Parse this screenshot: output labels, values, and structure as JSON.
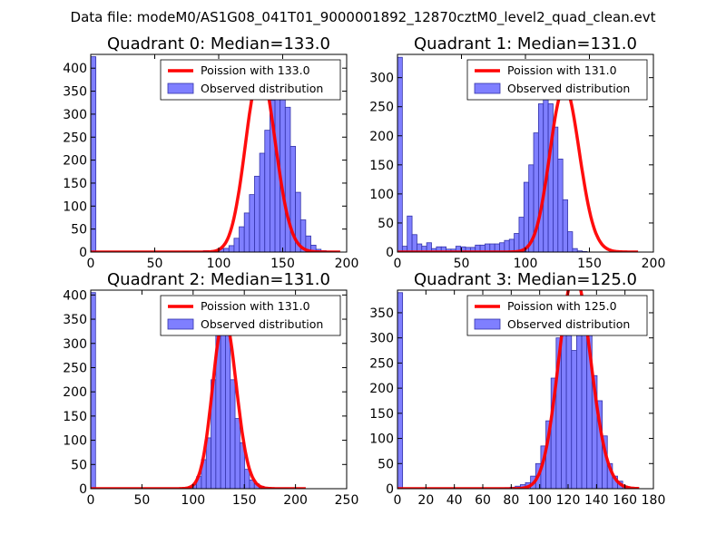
{
  "figure": {
    "suptitle": "Data file: modeM0/AS1G08_041T01_9000001892_12870cztM0_level2_quad_clean.evt",
    "colors": {
      "bar_fill": "#7f7fff",
      "bar_edge": "#3333aa",
      "fit_line": "#ff0000"
    }
  },
  "chart_data": [
    {
      "type": "bar",
      "title": "Quadrant 0: Median=133.0",
      "xlim": [
        0,
        200
      ],
      "ylim": [
        0,
        430
      ],
      "xticks": [
        0,
        50,
        100,
        150,
        200
      ],
      "yticks": [
        0,
        50,
        100,
        150,
        200,
        250,
        300,
        350,
        400
      ],
      "legend": {
        "line_label": "Poission with 133.0",
        "bar_label": "Observed distribution",
        "position": "upper-right"
      },
      "bins": {
        "start": 0,
        "width": 4.0
      },
      "counts": [
        425,
        0,
        0,
        0,
        0,
        0,
        0,
        0,
        0,
        0,
        0,
        0,
        0,
        0,
        0,
        0,
        0,
        0,
        1,
        0,
        0,
        0,
        3,
        0,
        3,
        7,
        8,
        14,
        30,
        55,
        85,
        125,
        165,
        215,
        265,
        330,
        350,
        335,
        315,
        230,
        130,
        70,
        35,
        15,
        6,
        3,
        2,
        1,
        0,
        0
      ],
      "fit": {
        "label": "Poission with 133.0",
        "mean": 133.0,
        "x_range": [
          0,
          195
        ],
        "scale": 1.02
      }
    },
    {
      "type": "bar",
      "title": "Quadrant 1: Median=131.0",
      "xlim": [
        0,
        200
      ],
      "ylim": [
        0,
        340
      ],
      "xticks": [
        0,
        50,
        100,
        150,
        200
      ],
      "yticks": [
        0,
        50,
        100,
        150,
        200,
        250,
        300
      ],
      "legend": {
        "line_label": "Poission with 131.0",
        "bar_label": "Observed distribution",
        "position": "upper-right"
      },
      "bins": {
        "start": 0,
        "width": 3.8
      },
      "counts": [
        335,
        10,
        62,
        30,
        14,
        10,
        16,
        6,
        9,
        9,
        5,
        5,
        10,
        9,
        8,
        8,
        12,
        12,
        14,
        14,
        14,
        16,
        20,
        22,
        32,
        60,
        120,
        150,
        205,
        255,
        270,
        255,
        215,
        160,
        90,
        35,
        6,
        2,
        1,
        0,
        0,
        0,
        0,
        0,
        0,
        0,
        0,
        0,
        0
      ],
      "fit": {
        "label": "Poission with 131.0",
        "mean": 131.0,
        "x_range": [
          0,
          188
        ],
        "scale": 0.98
      }
    },
    {
      "type": "bar",
      "title": "Quadrant 2: Median=131.0",
      "xlim": [
        0,
        250
      ],
      "ylim": [
        0,
        410
      ],
      "xticks": [
        0,
        50,
        100,
        150,
        200,
        250
      ],
      "yticks": [
        0,
        50,
        100,
        150,
        200,
        250,
        300,
        350,
        400
      ],
      "legend": {
        "line_label": "Poission with 131.0",
        "bar_label": "Observed distribution",
        "position": "upper-right"
      },
      "bins": {
        "start": 0,
        "width": 4.7
      },
      "counts": [
        405,
        0,
        0,
        0,
        0,
        0,
        0,
        0,
        0,
        0,
        0,
        0,
        0,
        0,
        0,
        0,
        0,
        0,
        0,
        1,
        3,
        8,
        25,
        60,
        105,
        225,
        340,
        360,
        330,
        225,
        145,
        95,
        40,
        18,
        10,
        5,
        3,
        1,
        1,
        1,
        1,
        0,
        0,
        0,
        0,
        0,
        0,
        0,
        0,
        0,
        0,
        0,
        0
      ],
      "fit": {
        "label": "Poission with 131.0",
        "mean": 131.0,
        "x_range": [
          0,
          210
        ],
        "scale": 1.08
      }
    },
    {
      "type": "bar",
      "title": "Quadrant 3: Median=125.0",
      "xlim": [
        0,
        180
      ],
      "ylim": [
        0,
        395
      ],
      "xticks": [
        0,
        20,
        40,
        60,
        80,
        100,
        120,
        140,
        160,
        180
      ],
      "yticks": [
        0,
        50,
        100,
        150,
        200,
        250,
        300,
        350
      ],
      "legend": {
        "line_label": "Poission with 125.0",
        "bar_label": "Observed distribution",
        "position": "upper-right"
      },
      "bins": {
        "start": 0,
        "width": 3.6
      },
      "counts": [
        390,
        0,
        0,
        0,
        0,
        0,
        0,
        0,
        0,
        0,
        0,
        0,
        0,
        0,
        0,
        0,
        0,
        0,
        0,
        0,
        1,
        2,
        3,
        5,
        8,
        12,
        25,
        50,
        85,
        135,
        220,
        300,
        345,
        305,
        275,
        305,
        335,
        305,
        225,
        175,
        105,
        50,
        25,
        15,
        5,
        2,
        1,
        0,
        0,
        0
      ],
      "fit": {
        "label": "Poission with 125.0",
        "mean": 125.0,
        "x_range": [
          0,
          170
        ],
        "scale": 1.0
      }
    }
  ]
}
